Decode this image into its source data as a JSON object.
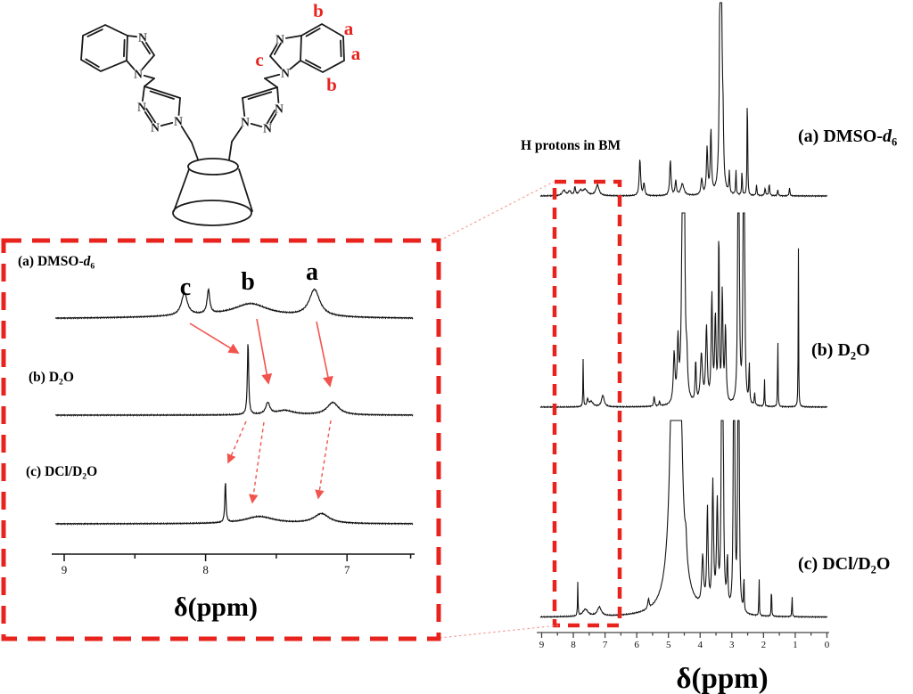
{
  "colors": {
    "box_red": "#e8231e",
    "arrow_red": "#f2534d",
    "connector_red": "#f59e98",
    "trace_black": "#141414",
    "molecule_black": "#1a1a1a"
  },
  "molecule": {
    "atom_symbol": "N",
    "proton_labels": [
      "b",
      "a",
      "a",
      "b",
      "c"
    ]
  },
  "main_panel": {
    "annotation_bm": "H protons in BM",
    "xlabel": "δ(ppm)",
    "tick_labels": [
      "9",
      "8",
      "7",
      "6",
      "5",
      "4",
      "3",
      "2",
      "1",
      "0"
    ],
    "spectra_labels": [
      {
        "pre": "(a) DMSO-",
        "it": "d",
        "sub": "6",
        "post": ""
      },
      {
        "pre": "(b) D",
        "it": "",
        "sub": "2",
        "post": "O"
      },
      {
        "pre": "(c) DCl/D",
        "it": "",
        "sub": "2",
        "post": "O"
      }
    ]
  },
  "inset_panel": {
    "xlabel": "δ(ppm)",
    "tick_labels": [
      "9",
      "8",
      "7"
    ],
    "peak_letters": [
      "c",
      "b",
      "a"
    ],
    "spectra_labels": [
      {
        "pre": "(a) DMSO-",
        "it": "d",
        "sub": "6",
        "post": ""
      },
      {
        "pre": "(b) D",
        "it": "",
        "sub": "2",
        "post": "O"
      },
      {
        "pre": "(c) DCl/D",
        "it": "",
        "sub": "2",
        "post": "O"
      }
    ]
  },
  "chart_data": [
    {
      "id": "main-nmr-stack",
      "type": "line",
      "xlabel": "δ(ppm)",
      "x_axis": {
        "min": 0,
        "max": 9,
        "reversed": true,
        "major_ticks": [
          9,
          8,
          7,
          6,
          5,
          4,
          3,
          2,
          1,
          0
        ],
        "minor_ticks": [
          8.5,
          7.5,
          6.5,
          5.5,
          4.5,
          3.5,
          2.5,
          1.5,
          0.5
        ]
      },
      "highlight_region_ppm": [
        8.6,
        6.5
      ],
      "annotation": "H protons in BM",
      "series": [
        {
          "name": "(a) DMSO-d6",
          "peaks_ppm_height_width": [
            [
              8.3,
              6,
              0.12
            ],
            [
              8.12,
              5,
              0.1
            ],
            [
              7.95,
              9,
              0.05
            ],
            [
              7.78,
              5,
              0.1
            ],
            [
              7.63,
              7,
              0.18
            ],
            [
              7.24,
              12,
              0.12
            ],
            [
              5.9,
              42,
              0.05
            ],
            [
              5.77,
              14,
              0.05
            ],
            [
              4.94,
              40,
              0.05
            ],
            [
              4.77,
              16,
              0.05
            ],
            [
              4.56,
              13,
              0.12
            ],
            [
              3.95,
              18,
              0.06
            ],
            [
              3.78,
              52,
              0.05
            ],
            [
              3.66,
              72,
              0.045
            ],
            [
              3.35,
              2600,
              0.022
            ],
            [
              3.28,
              60,
              0.04
            ],
            [
              3.08,
              24,
              0.03
            ],
            [
              2.87,
              28,
              0.025
            ],
            [
              2.68,
              28,
              0.025
            ],
            [
              2.51,
              136,
              0.02
            ],
            [
              2.22,
              12,
              0.03
            ],
            [
              1.95,
              8,
              0.04
            ],
            [
              1.82,
              13,
              0.035
            ],
            [
              1.55,
              7,
              0.03
            ],
            [
              1.18,
              9,
              0.03
            ]
          ]
        },
        {
          "name": "(b) D2O",
          "peaks_ppm_height_width": [
            [
              7.69,
              55,
              0.018
            ],
            [
              7.55,
              8,
              0.05
            ],
            [
              7.44,
              6,
              0.15
            ],
            [
              7.07,
              13,
              0.1
            ],
            [
              5.45,
              12,
              0.035
            ],
            [
              5.28,
              5,
              0.04
            ],
            [
              4.82,
              55,
              0.06
            ],
            [
              4.7,
              65,
              0.05
            ],
            [
              4.53,
              2600,
              0.028
            ],
            [
              4.42,
              35,
              0.05
            ],
            [
              4.14,
              48,
              0.04
            ],
            [
              3.96,
              55,
              0.08
            ],
            [
              3.8,
              85,
              0.06
            ],
            [
              3.63,
              120,
              0.05
            ],
            [
              3.52,
              95,
              0.05
            ],
            [
              3.41,
              195,
              0.035
            ],
            [
              3.3,
              125,
              0.045
            ],
            [
              3.2,
              85,
              0.05
            ],
            [
              2.79,
              2600,
              0.016
            ],
            [
              2.62,
              2600,
              0.016
            ],
            [
              2.45,
              48,
              0.025
            ],
            [
              2.28,
              14,
              0.03
            ],
            [
              1.97,
              32,
              0.018
            ],
            [
              1.55,
              92,
              0.016
            ],
            [
              0.9,
              182,
              0.016
            ]
          ]
        },
        {
          "name": "(c) DCl/D2O",
          "peaks_ppm_height_width": [
            [
              7.86,
              38,
              0.018
            ],
            [
              7.62,
              8,
              0.2
            ],
            [
              7.18,
              10,
              0.15
            ],
            [
              5.63,
              11,
              0.05
            ],
            [
              4.76,
              2600,
              0.11
            ],
            [
              4.45,
              25,
              0.06
            ],
            [
              3.92,
              55,
              0.07
            ],
            [
              3.77,
              110,
              0.05
            ],
            [
              3.6,
              140,
              0.055
            ],
            [
              3.46,
              115,
              0.055
            ],
            [
              3.3,
              2600,
              0.02
            ],
            [
              3.14,
              55,
              0.04
            ],
            [
              2.93,
              2600,
              0.015
            ],
            [
              2.79,
              2600,
              0.015
            ],
            [
              2.62,
              42,
              0.022
            ],
            [
              2.14,
              48,
              0.016
            ],
            [
              1.75,
              42,
              0.016
            ],
            [
              1.1,
              28,
              0.016
            ]
          ]
        }
      ]
    },
    {
      "id": "inset-aromatic-region",
      "type": "line",
      "xlabel": "δ(ppm)",
      "x_axis": {
        "min": 6.5,
        "max": 9,
        "reversed": true,
        "major_ticks": [
          9,
          8,
          7
        ],
        "minor_ticks": [
          8.5,
          7.5,
          6.55
        ]
      },
      "peak_assignments": {
        "c": [
          8.15,
          7.7,
          7.86
        ],
        "b": [
          7.68,
          7.56,
          7.62
        ],
        "a": [
          7.23,
          7.1,
          7.18
        ]
      },
      "series": [
        {
          "name": "(a) DMSO-d6",
          "peaks_ppm_height_width": [
            [
              8.15,
              25,
              0.05
            ],
            [
              7.98,
              27,
              0.022
            ],
            [
              7.8,
              4,
              1.2
            ],
            [
              7.68,
              13,
              0.28
            ],
            [
              7.23,
              30,
              0.09
            ]
          ]
        },
        {
          "name": "(b) D2O",
          "peaks_ppm_height_width": [
            [
              7.7,
              82,
              0.011
            ],
            [
              7.56,
              13,
              0.035
            ],
            [
              7.44,
              5,
              0.15
            ],
            [
              7.1,
              14,
              0.1
            ]
          ]
        },
        {
          "name": "(c) DCl/D2O",
          "peaks_ppm_height_width": [
            [
              7.86,
              46,
              0.01
            ],
            [
              7.62,
              8,
              0.25
            ],
            [
              7.18,
              11,
              0.13
            ]
          ]
        }
      ]
    }
  ]
}
